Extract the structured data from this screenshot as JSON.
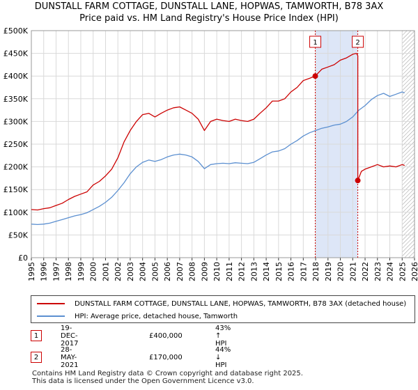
{
  "title": {
    "line1": "DUNSTALL FARM COTTAGE, DUNSTALL LANE, HOPWAS, TAMWORTH, B78 3AX",
    "line2": "Price paid vs. HM Land Registry's House Price Index (HPI)"
  },
  "colors": {
    "property": "#cc0000",
    "hpi": "#5b8fd0",
    "shade": "#dde6f7"
  },
  "legend": {
    "property_label": "DUNSTALL FARM COTTAGE, DUNSTALL LANE, HOPWAS, TAMWORTH, B78 3AX (detached house)",
    "hpi_label": "HPI: Average price, detached house, Tamworth"
  },
  "transactions": [
    {
      "num": "1",
      "date": "19-DEC-2017",
      "price": "£400,000",
      "hpi_change": "43% ↑ HPI"
    },
    {
      "num": "2",
      "date": "28-MAY-2021",
      "price": "£170,000",
      "hpi_change": "44% ↓ HPI"
    }
  ],
  "footer": {
    "line1": "Contains HM Land Registry data © Crown copyright and database right 2025.",
    "line2": "This data is licensed under the Open Government Licence v3.0."
  },
  "chart_data": {
    "type": "line",
    "title": "Price paid vs. HM Land Registry's House Price Index (HPI)",
    "xlim": [
      1995,
      2026
    ],
    "ylim": [
      0,
      500000
    ],
    "xticks": [
      1995,
      1996,
      1997,
      1998,
      1999,
      2000,
      2001,
      2002,
      2003,
      2004,
      2005,
      2006,
      2007,
      2008,
      2009,
      2010,
      2011,
      2012,
      2013,
      2014,
      2015,
      2016,
      2017,
      2018,
      2019,
      2020,
      2021,
      2022,
      2023,
      2024,
      2025,
      2026
    ],
    "yticks": [
      {
        "value": 0,
        "label": "£0"
      },
      {
        "value": 50000,
        "label": "£50K"
      },
      {
        "value": 100000,
        "label": "£100K"
      },
      {
        "value": 150000,
        "label": "£150K"
      },
      {
        "value": 200000,
        "label": "£200K"
      },
      {
        "value": 250000,
        "label": "£250K"
      },
      {
        "value": 300000,
        "label": "£300K"
      },
      {
        "value": 350000,
        "label": "£350K"
      },
      {
        "value": 400000,
        "label": "£400K"
      },
      {
        "value": 450000,
        "label": "£450K"
      },
      {
        "value": 500000,
        "label": "£500K"
      }
    ],
    "shaded_range": [
      2017.97,
      2021.41
    ],
    "hatch_from": 2025.0,
    "markers": [
      {
        "label": "1",
        "x": 2017.97,
        "y": 400000
      },
      {
        "label": "2",
        "x": 2021.41,
        "y": 170000
      }
    ],
    "series": [
      {
        "name": "DUNSTALL FARM COTTAGE, DUNSTALL LANE, HOPWAS, TAMWORTH, B78 3AX (detached house)",
        "x": [
          1995.0,
          1995.5,
          1996.0,
          1996.5,
          1997.0,
          1997.5,
          1998.0,
          1998.5,
          1999.0,
          1999.5,
          2000.0,
          2000.5,
          2001.0,
          2001.5,
          2002.0,
          2002.5,
          2003.0,
          2003.5,
          2004.0,
          2004.5,
          2005.0,
          2005.5,
          2006.0,
          2006.5,
          2007.0,
          2007.5,
          2008.0,
          2008.5,
          2009.0,
          2009.5,
          2010.0,
          2010.5,
          2011.0,
          2011.5,
          2012.0,
          2012.5,
          2013.0,
          2013.5,
          2014.0,
          2014.5,
          2015.0,
          2015.5,
          2016.0,
          2016.5,
          2017.0,
          2017.5,
          2017.97,
          2018.5,
          2019.0,
          2019.5,
          2020.0,
          2020.5,
          2021.0,
          2021.3,
          2021.41,
          2021.41,
          2021.7,
          2022.0,
          2022.5,
          2023.0,
          2023.5,
          2024.0,
          2024.5,
          2025.0,
          2025.2
        ],
        "values": [
          106000,
          105000,
          108000,
          110000,
          115000,
          120000,
          128000,
          135000,
          140000,
          145000,
          160000,
          168000,
          180000,
          195000,
          220000,
          255000,
          280000,
          300000,
          315000,
          318000,
          310000,
          318000,
          325000,
          330000,
          332000,
          325000,
          318000,
          305000,
          280000,
          300000,
          305000,
          302000,
          300000,
          305000,
          302000,
          300000,
          305000,
          318000,
          330000,
          345000,
          345000,
          350000,
          365000,
          375000,
          390000,
          395000,
          400000,
          415000,
          420000,
          425000,
          435000,
          440000,
          448000,
          450000,
          445000,
          170000,
          190000,
          195000,
          200000,
          205000,
          200000,
          202000,
          200000,
          205000,
          203000
        ]
      },
      {
        "name": "HPI: Average price, detached house, Tamworth",
        "x": [
          1995.0,
          1995.5,
          1996.0,
          1996.5,
          1997.0,
          1997.5,
          1998.0,
          1998.5,
          1999.0,
          1999.5,
          2000.0,
          2000.5,
          2001.0,
          2001.5,
          2002.0,
          2002.5,
          2003.0,
          2003.5,
          2004.0,
          2004.5,
          2005.0,
          2005.5,
          2006.0,
          2006.5,
          2007.0,
          2007.5,
          2008.0,
          2008.5,
          2009.0,
          2009.5,
          2010.0,
          2010.5,
          2011.0,
          2011.5,
          2012.0,
          2012.5,
          2013.0,
          2013.5,
          2014.0,
          2014.5,
          2015.0,
          2015.5,
          2016.0,
          2016.5,
          2017.0,
          2017.5,
          2018.0,
          2018.5,
          2019.0,
          2019.5,
          2020.0,
          2020.5,
          2021.0,
          2021.5,
          2022.0,
          2022.5,
          2023.0,
          2023.5,
          2024.0,
          2024.5,
          2025.0,
          2025.2
        ],
        "values": [
          74000,
          73000,
          74000,
          76000,
          80000,
          84000,
          88000,
          92000,
          95000,
          99000,
          106000,
          113000,
          122000,
          133000,
          148000,
          165000,
          185000,
          200000,
          210000,
          215000,
          212000,
          216000,
          222000,
          226000,
          228000,
          226000,
          222000,
          212000,
          196000,
          205000,
          207000,
          208000,
          207000,
          209000,
          208000,
          207000,
          210000,
          218000,
          226000,
          233000,
          235000,
          240000,
          250000,
          258000,
          268000,
          275000,
          280000,
          285000,
          288000,
          292000,
          294000,
          300000,
          310000,
          325000,
          335000,
          348000,
          357000,
          362000,
          355000,
          360000,
          365000,
          363000
        ]
      }
    ]
  }
}
